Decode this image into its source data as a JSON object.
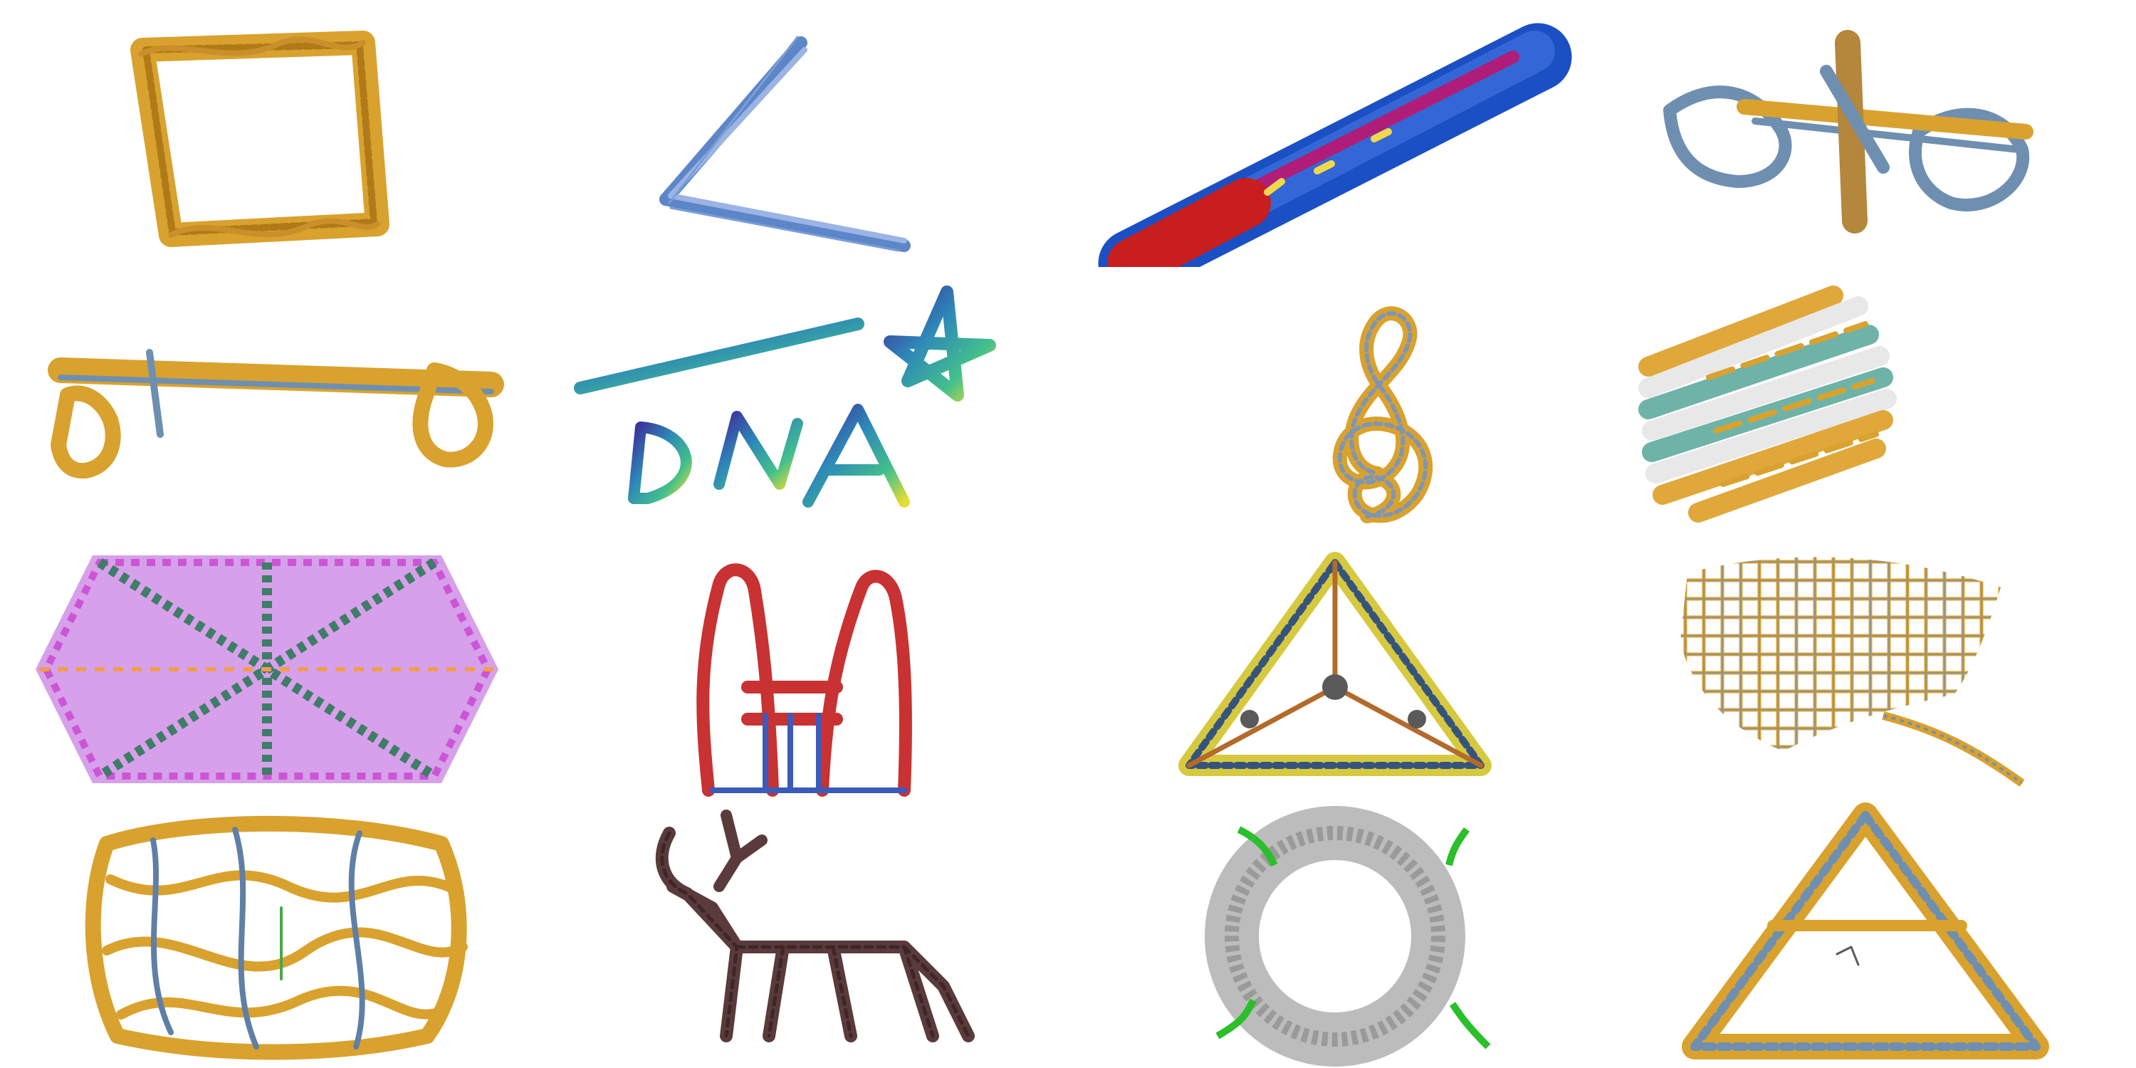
{
  "gallery": {
    "rows": 4,
    "columns": 4,
    "tiles": [
      {
        "subject": "square-frame",
        "colors": [
          "#d9a22e",
          "#b07a18"
        ]
      },
      {
        "subject": "v-bundle",
        "colors": [
          "#5d86c9",
          "#9bb4e3"
        ]
      },
      {
        "subject": "helix-bundle",
        "colors": [
          "#c81e1e",
          "#1b4fc4",
          "#b01d78",
          "#f1d84a"
        ]
      },
      {
        "subject": "winged-bundle",
        "colors": [
          "#d9a22e",
          "#6f8fb0"
        ]
      },
      {
        "subject": "long-bundle",
        "colors": [
          "#d9a22e",
          "#6f8fb0"
        ]
      },
      {
        "subject": "dna-star",
        "colors": [
          "#3f2b97",
          "#2d88b8",
          "#43c08b",
          "#e6dd33"
        ]
      },
      {
        "subject": "treble-clef",
        "colors": [
          "#d9a22e",
          "#7f95b4"
        ]
      },
      {
        "subject": "cylinder-bundle",
        "colors": [
          "#e8e8e8",
          "#e0a83a",
          "#6fb3a8"
        ]
      },
      {
        "subject": "hexagonal-lattice",
        "colors": [
          "#cc55d6",
          "#3e7d67",
          "#f29d4c"
        ]
      },
      {
        "subject": "arch-structure",
        "colors": [
          "#c83232",
          "#3c5ab9"
        ]
      },
      {
        "subject": "tetrahedron",
        "colors": [
          "#d7c93f",
          "#35547d",
          "#b36a2a",
          "#5a5a5a"
        ]
      },
      {
        "subject": "mesh-sheet",
        "colors": [
          "#d9a22e",
          "#7f8fa6"
        ]
      },
      {
        "subject": "woven-cage",
        "colors": [
          "#d9a22e",
          "#5f7fa6"
        ]
      },
      {
        "subject": "deer-outline",
        "colors": [
          "#5a3a3a",
          "#3d2626"
        ]
      },
      {
        "subject": "ring",
        "colors": [
          "#bcbcbc",
          "#9a9a9a",
          "#2bbf2b"
        ]
      },
      {
        "subject": "triangle-frame",
        "colors": [
          "#d9a22e",
          "#6f8fb0"
        ]
      }
    ]
  }
}
